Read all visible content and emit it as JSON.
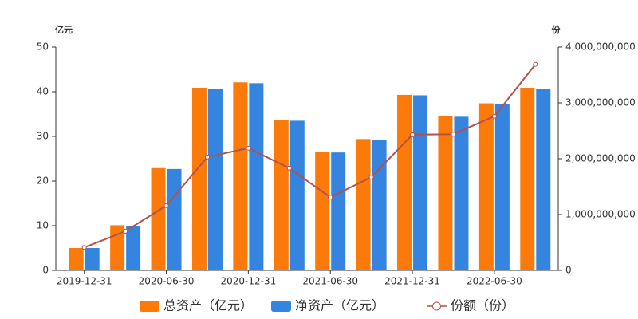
{
  "chart_data": {
    "type": "bar",
    "y_label": "亿元",
    "y2_label": "份",
    "categories": [
      "2019-12-31",
      null,
      "2020-06-30",
      null,
      "2020-12-31",
      null,
      "2021-06-30",
      null,
      "2021-12-31",
      null,
      "2022-06-30",
      null
    ],
    "series": [
      {
        "name": "总资产（亿元）",
        "color": "#fb7a0a",
        "values": [
          5.0,
          10.1,
          22.9,
          40.9,
          42.1,
          33.6,
          26.5,
          29.4,
          39.3,
          34.5,
          37.4,
          40.9
        ]
      },
      {
        "name": "净资产（亿元）",
        "color": "#3484e0",
        "values": [
          5.0,
          10.0,
          22.7,
          40.7,
          41.9,
          33.5,
          26.4,
          29.2,
          39.2,
          34.4,
          37.3,
          40.7
        ]
      },
      {
        "name": "份额（份）",
        "color": "#b5514b",
        "type": "line",
        "axis": "y2",
        "values": [
          410000000,
          700000000,
          1160000000,
          2030000000,
          2190000000,
          1830000000,
          1310000000,
          1670000000,
          2430000000,
          2440000000,
          2760000000,
          3690000000
        ]
      }
    ],
    "ylim": [
      0,
      50
    ],
    "yticks": [
      0,
      10,
      20,
      30,
      40,
      50
    ],
    "y2lim": [
      0,
      4000000000
    ],
    "y2ticks": [
      0,
      {
        "value": 1000000000,
        "label": "1,000,000,000"
      },
      {
        "value": 2000000000,
        "label": "2,000,000,000"
      },
      {
        "value": 3000000000,
        "label": "3,000,000,000"
      },
      {
        "value": 4000000000,
        "label": "4,000,000,000"
      }
    ],
    "legend": "bottom",
    "grid": false
  }
}
